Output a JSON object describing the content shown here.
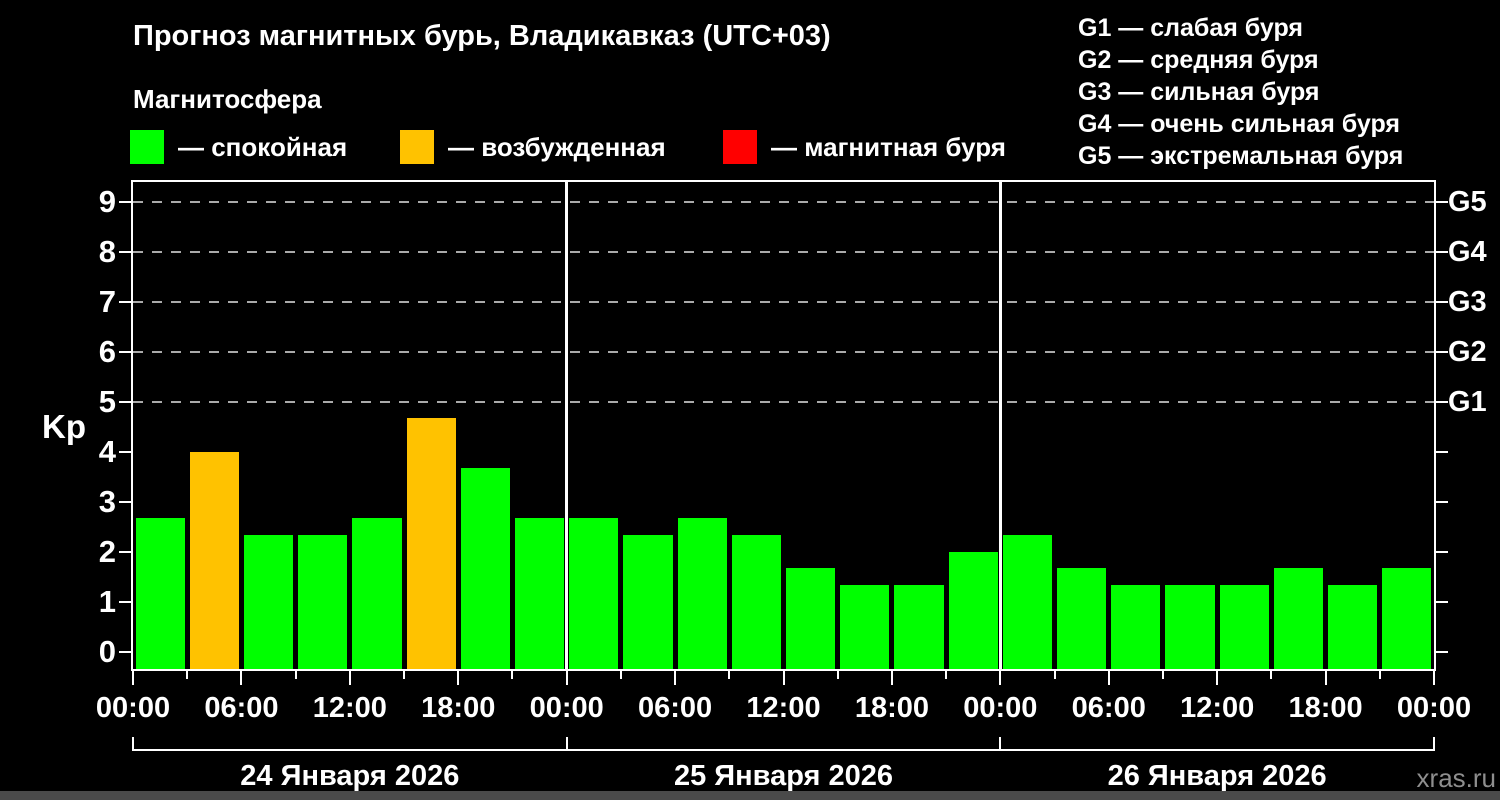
{
  "header": {
    "title": "Прогноз магнитных бурь, Владикавказ (UTC+03)",
    "subtitle": "Магнитосфера"
  },
  "legend": {
    "items": [
      {
        "key": "quiet",
        "label": "— спокойная",
        "color": "#00ff00"
      },
      {
        "key": "excited",
        "label": "— возбужденная",
        "color": "#ffc200"
      },
      {
        "key": "storm",
        "label": "— магнитная буря",
        "color": "#ff0000"
      }
    ]
  },
  "storm_scale_legend": {
    "items": [
      "G1 — слабая буря",
      "G2 — средняя буря",
      "G3 — сильная буря",
      "G4 — очень сильная буря",
      "G5 — экстремальная буря"
    ]
  },
  "watermark": "xras.ru",
  "chart_data": {
    "type": "bar",
    "title": "Прогноз магнитных бурь, Владикавказ (UTC+03)",
    "ylabel": "Kp",
    "ylim": [
      -0.35,
      9.4
    ],
    "y_ticks": [
      0,
      1,
      2,
      3,
      4,
      5,
      6,
      7,
      8,
      9
    ],
    "gridlines_at": [
      5,
      6,
      7,
      8,
      9
    ],
    "grid": "dashed horizontal at storm levels only",
    "right_axis": {
      "5": "G1",
      "6": "G2",
      "7": "G3",
      "8": "G4",
      "9": "G5"
    },
    "x_tick_interval_hours": 3,
    "x_label_interval_hours": 6,
    "x_labels": [
      "00:00",
      "06:00",
      "12:00",
      "18:00",
      "00:00",
      "06:00",
      "12:00",
      "18:00",
      "00:00",
      "06:00",
      "12:00",
      "18:00",
      "00:00"
    ],
    "bar_interval_hours": 3,
    "days": [
      {
        "date": "24 Января 2026",
        "values": [
          2.67,
          4.0,
          2.33,
          2.33,
          2.67,
          4.67,
          3.67,
          2.67
        ],
        "states": [
          "quiet",
          "excited",
          "quiet",
          "quiet",
          "quiet",
          "excited",
          "quiet",
          "quiet"
        ]
      },
      {
        "date": "25 Января 2026",
        "values": [
          2.67,
          2.33,
          2.67,
          2.33,
          1.67,
          1.33,
          1.33,
          2.0
        ],
        "states": [
          "quiet",
          "quiet",
          "quiet",
          "quiet",
          "quiet",
          "quiet",
          "quiet",
          "quiet"
        ]
      },
      {
        "date": "26 Января 2026",
        "values": [
          2.33,
          1.67,
          1.33,
          1.33,
          1.33,
          1.67,
          1.33,
          1.67
        ],
        "states": [
          "quiet",
          "quiet",
          "quiet",
          "quiet",
          "quiet",
          "quiet",
          "quiet",
          "quiet"
        ]
      }
    ],
    "state_colors": {
      "quiet": "#00ff00",
      "excited": "#ffc200",
      "storm": "#ff0000"
    },
    "colors": {
      "axis": "#ffffff",
      "grid": "#aaaaaa",
      "background": "#000000",
      "watermark": "#8e8e8e"
    }
  }
}
